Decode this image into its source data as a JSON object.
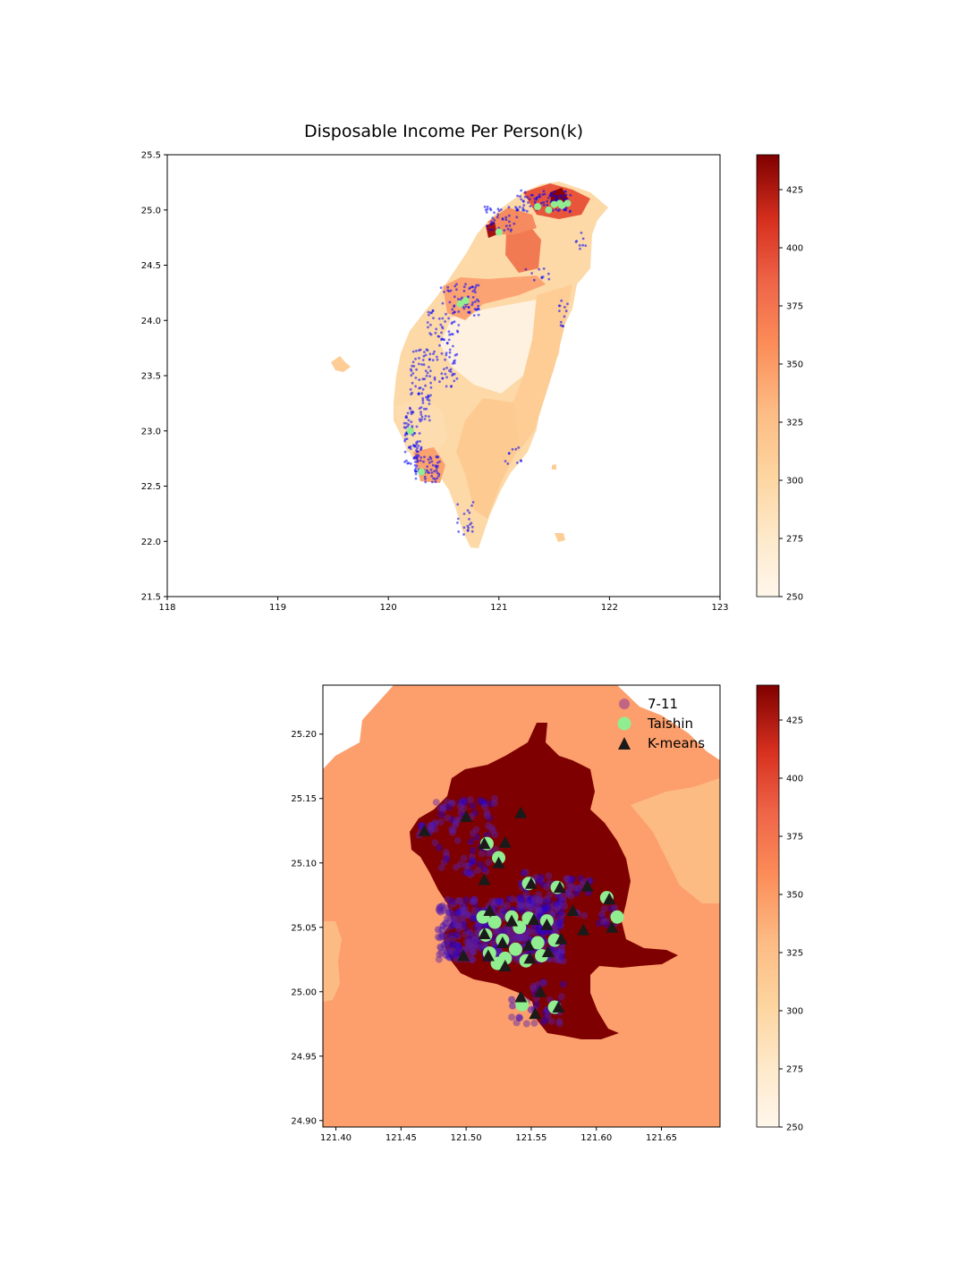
{
  "chart_data": [
    {
      "type": "choropleth-map",
      "title": "Disposable Income Per Person(k)",
      "xlim": [
        118,
        123
      ],
      "ylim": [
        21.5,
        25.5
      ],
      "x_ticks": [
        "118",
        "119",
        "120",
        "121",
        "122",
        "123"
      ],
      "y_ticks": [
        "21.5",
        "22.0",
        "22.5",
        "23.0",
        "23.5",
        "24.0",
        "24.5",
        "25.0",
        "25.5"
      ],
      "colormap": "OrRd",
      "colorbar": {
        "min": 250,
        "max": 440,
        "ticks": [
          "250",
          "275",
          "300",
          "325",
          "350",
          "375",
          "400",
          "425"
        ]
      },
      "series": [
        {
          "name": "7-11",
          "color": "#0000ff",
          "marker": "point"
        },
        {
          "name": "Taishin",
          "color": "#90ee90",
          "marker": "circle",
          "points": [
            [
              121.5,
              25.05
            ],
            [
              121.55,
              25.06
            ],
            [
              121.57,
              25.04
            ],
            [
              121.0,
              24.8
            ],
            [
              120.7,
              24.18
            ],
            [
              120.65,
              24.15
            ],
            [
              120.2,
              23.0
            ],
            [
              120.3,
              22.63
            ],
            [
              121.35,
              25.03
            ],
            [
              121.45,
              25.0
            ],
            [
              121.62,
              25.06
            ]
          ]
        }
      ]
    },
    {
      "type": "choropleth-map",
      "title": "",
      "xlim": [
        121.39,
        121.695
      ],
      "ylim": [
        24.895,
        25.238
      ],
      "x_ticks": [
        "121.40",
        "121.45",
        "121.50",
        "121.55",
        "121.60",
        "121.65"
      ],
      "y_ticks": [
        "24.90",
        "24.95",
        "25.00",
        "25.05",
        "25.10",
        "25.15",
        "25.20"
      ],
      "colormap": "OrRd",
      "colorbar": {
        "min": 250,
        "max": 440,
        "ticks": [
          "250",
          "275",
          "300",
          "325",
          "350",
          "375",
          "400",
          "425"
        ]
      },
      "legend": {
        "placement": "upper-right",
        "entries": [
          "7-11",
          "Taishin",
          "K-means"
        ]
      },
      "series": [
        {
          "name": "7-11",
          "color": "#7a1fa2",
          "marker": "circle"
        },
        {
          "name": "Taishin",
          "color": "#90ee90",
          "marker": "circle",
          "points": [
            [
              121.516,
              25.115
            ],
            [
              121.525,
              25.104
            ],
            [
              121.548,
              25.084
            ],
            [
              121.57,
              25.081
            ],
            [
              121.608,
              25.073
            ],
            [
              121.616,
              25.058
            ],
            [
              121.513,
              25.058
            ],
            [
              121.522,
              25.054
            ],
            [
              121.535,
              25.058
            ],
            [
              121.548,
              25.057
            ],
            [
              121.562,
              25.055
            ],
            [
              121.515,
              25.044
            ],
            [
              121.528,
              25.04
            ],
            [
              121.538,
              25.033
            ],
            [
              121.555,
              25.038
            ],
            [
              121.568,
              25.04
            ],
            [
              121.518,
              25.03
            ],
            [
              121.53,
              25.026
            ],
            [
              121.546,
              25.024
            ],
            [
              121.524,
              25.022
            ],
            [
              121.558,
              25.028
            ],
            [
              121.543,
              24.99
            ],
            [
              121.568,
              24.988
            ],
            [
              121.541,
              25.05
            ]
          ]
        },
        {
          "name": "K-means",
          "color": "#1a1a1a",
          "marker": "triangle",
          "points": [
            [
              121.468,
              25.125
            ],
            [
              121.5,
              25.136
            ],
            [
              121.542,
              25.139
            ],
            [
              121.514,
              25.115
            ],
            [
              121.53,
              25.116
            ],
            [
              121.525,
              25.1
            ],
            [
              121.514,
              25.087
            ],
            [
              121.55,
              25.084
            ],
            [
              121.572,
              25.081
            ],
            [
              121.593,
              25.082
            ],
            [
              121.61,
              25.072
            ],
            [
              121.582,
              25.063
            ],
            [
              121.518,
              25.063
            ],
            [
              121.535,
              25.055
            ],
            [
              121.552,
              25.056
            ],
            [
              121.562,
              25.052
            ],
            [
              121.514,
              25.045
            ],
            [
              121.528,
              25.038
            ],
            [
              121.548,
              25.036
            ],
            [
              121.573,
              25.041
            ],
            [
              121.59,
              25.048
            ],
            [
              121.612,
              25.05
            ],
            [
              121.498,
              25.028
            ],
            [
              121.517,
              25.028
            ],
            [
              121.53,
              25.02
            ],
            [
              121.549,
              25.026
            ],
            [
              121.563,
              25.031
            ],
            [
              121.542,
              24.996
            ],
            [
              121.557,
              25.0
            ],
            [
              121.571,
              24.988
            ],
            [
              121.553,
              24.983
            ]
          ]
        }
      ]
    }
  ]
}
